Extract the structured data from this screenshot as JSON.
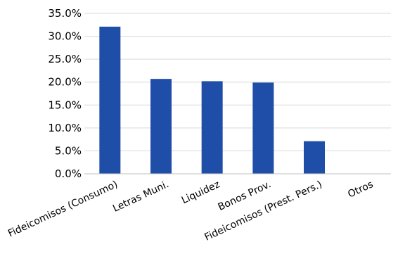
{
  "chart_data": {
    "type": "bar",
    "title": "",
    "xlabel": "",
    "ylabel": "",
    "categories": [
      "Fideicomisos (Consumo)",
      "Letras Muni.",
      "Liquidez",
      "Bonos Prov.",
      "Fideicomisos (Prest. Pers.)",
      "Otros"
    ],
    "values": [
      32.1,
      20.7,
      20.2,
      19.9,
      7.1,
      0.0
    ],
    "value_unit": "%",
    "ylim": [
      0,
      35
    ],
    "y_ticks": [
      {
        "value": 0,
        "label": "0.0%"
      },
      {
        "value": 5,
        "label": "5.0%"
      },
      {
        "value": 10,
        "label": "10.0%"
      },
      {
        "value": 15,
        "label": "15.0%"
      },
      {
        "value": 20,
        "label": "20.0%"
      },
      {
        "value": 25,
        "label": "25.0%"
      },
      {
        "value": 30,
        "label": "30.0%"
      },
      {
        "value": 35,
        "label": "35.0%"
      }
    ],
    "grid": true,
    "legend": "none",
    "bar_color": "#1f4ea8",
    "gridline_color": "#d9d9d9",
    "axis_color": "#bfbfbf",
    "text_color": "#000000"
  }
}
